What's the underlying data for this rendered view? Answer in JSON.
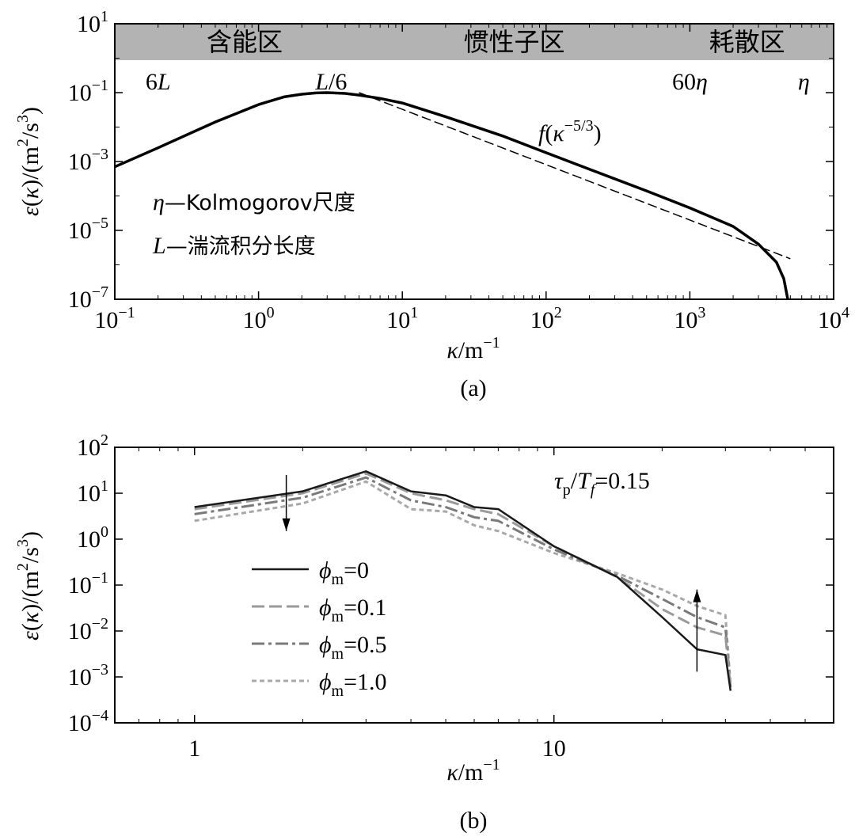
{
  "chart_data": [
    {
      "type": "line",
      "panel_label": "(a)",
      "x_scale": "log",
      "y_scale": "log",
      "xlim": [
        0.1,
        10000
      ],
      "ylim": [
        1e-07,
        10
      ],
      "xlabel": "κ/m⁻¹",
      "ylabel": "ε(κ)/(m²/s³)",
      "x_ticks": [
        {
          "v": 0.1,
          "base": "10",
          "exp": "−1"
        },
        {
          "v": 1,
          "base": "10",
          "exp": "0"
        },
        {
          "v": 10,
          "base": "10",
          "exp": "1"
        },
        {
          "v": 100,
          "base": "10",
          "exp": "2"
        },
        {
          "v": 1000,
          "base": "10",
          "exp": "3"
        },
        {
          "v": 10000,
          "base": "10",
          "exp": "4"
        }
      ],
      "y_ticks": [
        {
          "v": 1e-07,
          "base": "10",
          "exp": "−7"
        },
        {
          "v": 1e-05,
          "base": "10",
          "exp": "−5"
        },
        {
          "v": 0.001,
          "base": "10",
          "exp": "−3"
        },
        {
          "v": 0.1,
          "base": "10",
          "exp": "−1"
        },
        {
          "v": 10,
          "base": "10",
          "exp": "1"
        }
      ],
      "regions": [
        {
          "label": "含能区",
          "x": 0.8
        },
        {
          "label": "惯性子区",
          "x": 60
        },
        {
          "label": "耗散区",
          "x": 2500
        }
      ],
      "scale_labels": [
        {
          "label": "6L",
          "x": 0.2
        },
        {
          "label": "L/6",
          "x": 3.2
        },
        {
          "label": "60η",
          "x": 1000
        },
        {
          "label": "η",
          "x": 6200
        }
      ],
      "series": [
        {
          "style": "solid",
          "x": [
            0.1,
            0.2,
            0.5,
            1.0,
            1.5,
            2.0,
            2.5,
            3.0,
            4.0,
            5.0,
            7.0,
            10,
            20,
            50,
            100,
            200,
            500,
            1000,
            2000,
            3000,
            4000,
            4500,
            4800
          ],
          "y": [
            0.0007,
            0.0025,
            0.014,
            0.045,
            0.075,
            0.09,
            0.098,
            0.1,
            0.095,
            0.085,
            0.068,
            0.05,
            0.02,
            0.0055,
            0.0018,
            0.0006,
            0.00014,
            4.5e-05,
            1.3e-05,
            4e-06,
            1.2e-06,
            4e-07,
            1e-07
          ]
        },
        {
          "style": "dashed",
          "label": "f(κ^(−5/3))",
          "x": [
            5,
            5000
          ],
          "y": [
            0.1,
            1.5e-06
          ]
        }
      ],
      "legend_notes": [
        {
          "symbol": "η",
          "text": "—Kolmogorov尺度"
        },
        {
          "symbol": "L",
          "text": "—湍流积分长度"
        }
      ]
    },
    {
      "type": "line",
      "panel_label": "(b)",
      "x_scale": "log",
      "y_scale": "log",
      "xlim": [
        0.6,
        60
      ],
      "ylim": [
        0.0001,
        100
      ],
      "xlabel": "κ/m⁻¹",
      "ylabel": "ε(κ)/(m²/s³)",
      "x_ticks": [
        {
          "v": 1,
          "text": "1"
        },
        {
          "v": 10,
          "text": "10"
        }
      ],
      "y_ticks": [
        {
          "v": 0.0001,
          "base": "10",
          "exp": "−4"
        },
        {
          "v": 0.001,
          "base": "10",
          "exp": "−3"
        },
        {
          "v": 0.01,
          "base": "10",
          "exp": "−2"
        },
        {
          "v": 0.1,
          "base": "10",
          "exp": "−1"
        },
        {
          "v": 1,
          "base": "10",
          "exp": "0"
        },
        {
          "v": 10,
          "base": "10",
          "exp": "1"
        },
        {
          "v": 100,
          "base": "10",
          "exp": "2"
        }
      ],
      "annotation": "τp/Tf=0.15",
      "x": [
        1,
        2,
        3,
        4,
        5,
        6,
        7,
        10,
        15,
        20,
        25,
        30,
        31
      ],
      "series": [
        {
          "name": "ϕm=0",
          "style": "solid",
          "values": [
            5,
            11,
            30,
            11,
            9,
            5,
            4.5,
            0.7,
            0.15,
            0.02,
            0.004,
            0.003,
            0.0005
          ]
        },
        {
          "name": "ϕm=0.1",
          "style": "dash",
          "values": [
            4.5,
            10,
            27,
            10,
            7,
            4.5,
            3.5,
            0.7,
            0.15,
            0.03,
            0.012,
            0.008,
            0.0006
          ]
        },
        {
          "name": "ϕm=0.5",
          "style": "dashdot",
          "values": [
            3.5,
            8,
            22,
            7,
            5,
            3,
            2.5,
            0.6,
            0.16,
            0.05,
            0.02,
            0.012,
            0.0006
          ]
        },
        {
          "name": "ϕm=1.0",
          "style": "dot",
          "values": [
            2.5,
            6,
            18,
            4.5,
            4,
            2,
            1.5,
            0.5,
            0.18,
            0.08,
            0.035,
            0.022,
            0.0007
          ]
        }
      ],
      "arrows": [
        {
          "direction": "down",
          "x": 1.8,
          "y_from": 25,
          "y_to": 1.5
        },
        {
          "direction": "up",
          "x": 25,
          "y_from": 0.0013,
          "y_to": 0.08
        }
      ]
    }
  ]
}
